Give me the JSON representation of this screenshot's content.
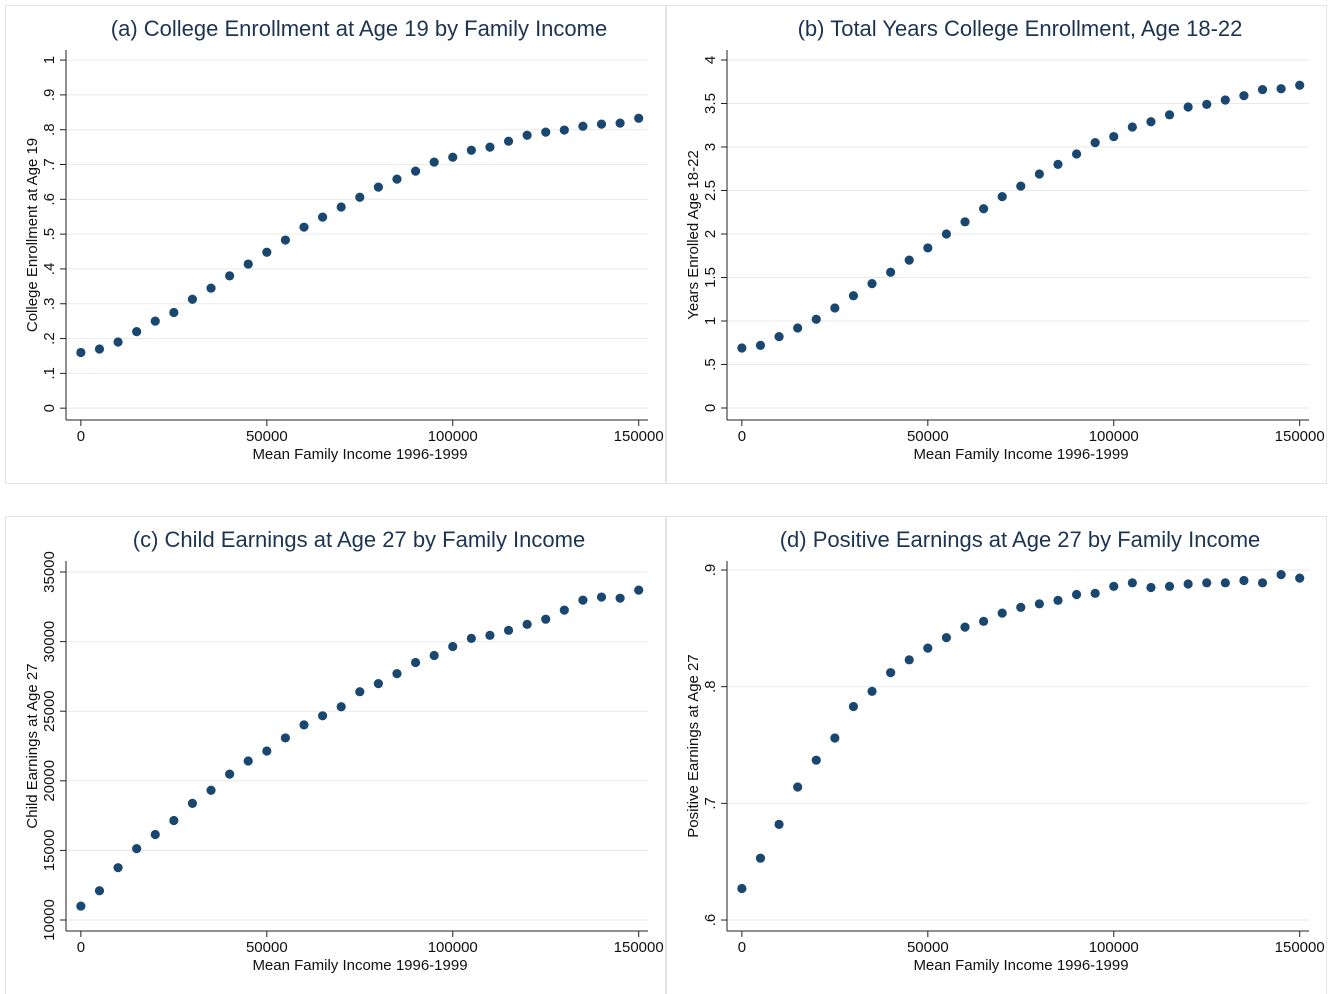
{
  "chart_data": [
    {
      "type": "scatter",
      "title": "(a) College Enrollment at Age 19 by Family Income",
      "xlabel": "Mean Family Income 1996-1999",
      "ylabel": "College Enrollment at Age 19",
      "color": "#1a476f",
      "grid": true,
      "x": [
        0,
        5000,
        10000,
        15000,
        20000,
        25000,
        30000,
        35000,
        40000,
        45000,
        50000,
        55000,
        60000,
        65000,
        70000,
        75000,
        80000,
        85000,
        90000,
        95000,
        100000,
        105000,
        110000,
        115000,
        120000,
        125000,
        130000,
        135000,
        140000,
        145000,
        150000
      ],
      "values": [
        0.16,
        0.17,
        0.19,
        0.22,
        0.25,
        0.275,
        0.313,
        0.345,
        0.38,
        0.414,
        0.448,
        0.483,
        0.52,
        0.549,
        0.578,
        0.606,
        0.635,
        0.658,
        0.681,
        0.707,
        0.721,
        0.741,
        0.75,
        0.767,
        0.784,
        0.793,
        0.799,
        0.81,
        0.816,
        0.819,
        0.833
      ],
      "xlim": [
        -4000,
        152500
      ],
      "ylim": [
        -0.034,
        1.029
      ],
      "xticks": [
        0,
        50000,
        100000,
        150000
      ],
      "yticks": [
        0,
        {
          "value": 0.1,
          "label": ".1"
        },
        {
          "value": 0.2,
          "label": ".2"
        },
        {
          "value": 0.3,
          "label": ".3"
        },
        {
          "value": 0.4,
          "label": ".4"
        },
        {
          "value": 0.5,
          "label": ".5"
        },
        {
          "value": 0.6,
          "label": ".6"
        },
        {
          "value": 0.7,
          "label": ".7"
        },
        {
          "value": 0.8,
          "label": ".8"
        },
        {
          "value": 0.9,
          "label": ".9"
        },
        1
      ]
    },
    {
      "type": "scatter",
      "title": "(b) Total Years College Enrollment, Age 18-22",
      "xlabel": "Mean Family Income 1996-1999",
      "ylabel": "Years Enrolled Age 18-22",
      "color": "#1a476f",
      "grid": true,
      "x": [
        0,
        5000,
        10000,
        15000,
        20000,
        25000,
        30000,
        35000,
        40000,
        45000,
        50000,
        55000,
        60000,
        65000,
        70000,
        75000,
        80000,
        85000,
        90000,
        95000,
        100000,
        105000,
        110000,
        115000,
        120000,
        125000,
        130000,
        135000,
        140000,
        145000,
        150000
      ],
      "values": [
        0.69,
        0.72,
        0.82,
        0.92,
        1.02,
        1.15,
        1.29,
        1.43,
        1.56,
        1.7,
        1.84,
        2.0,
        2.14,
        2.29,
        2.43,
        2.55,
        2.69,
        2.8,
        2.92,
        3.05,
        3.12,
        3.23,
        3.29,
        3.37,
        3.46,
        3.49,
        3.54,
        3.59,
        3.66,
        3.67,
        3.71
      ],
      "xlim": [
        -4000,
        152500
      ],
      "ylim": [
        -0.138,
        4.115
      ],
      "xticks": [
        0,
        50000,
        100000,
        150000
      ],
      "yticks": [
        0,
        {
          "value": 0.5,
          "label": ".5"
        },
        1,
        1.5,
        2,
        2.5,
        3,
        3.5,
        4
      ]
    },
    {
      "type": "scatter",
      "title": "(c) Child Earnings at Age 27 by Family Income",
      "xlabel": "Mean Family Income 1996-1999",
      "ylabel": "Child Earnings at Age 27",
      "color": "#1a476f",
      "grid": true,
      "x": [
        0,
        5000,
        10000,
        15000,
        20000,
        25000,
        30000,
        35000,
        40000,
        45000,
        50000,
        55000,
        60000,
        65000,
        70000,
        75000,
        80000,
        85000,
        90000,
        95000,
        100000,
        105000,
        110000,
        115000,
        120000,
        125000,
        130000,
        135000,
        140000,
        145000,
        150000
      ],
      "values": [
        11000,
        12100,
        13760,
        15130,
        16140,
        17150,
        18380,
        19320,
        20480,
        21420,
        22140,
        23080,
        24020,
        24670,
        25320,
        26400,
        26980,
        27700,
        28500,
        29000,
        29650,
        30230,
        30450,
        30810,
        31240,
        31610,
        32260,
        32980,
        33200,
        33120,
        33700
      ],
      "xlim": [
        -4000,
        152500
      ],
      "ylim": [
        9210,
        35790
      ],
      "xticks": [
        0,
        50000,
        100000,
        150000
      ],
      "yticks": [
        10000,
        15000,
        20000,
        25000,
        30000,
        35000
      ]
    },
    {
      "type": "scatter",
      "title": "(d) Positive Earnings at Age 27 by Family Income",
      "xlabel": "Mean Family Income 1996-1999",
      "ylabel": "Positive Earnings at Age 27",
      "color": "#1a476f",
      "grid": true,
      "x": [
        0,
        5000,
        10000,
        15000,
        20000,
        25000,
        30000,
        35000,
        40000,
        45000,
        50000,
        55000,
        60000,
        65000,
        70000,
        75000,
        80000,
        85000,
        90000,
        95000,
        100000,
        105000,
        110000,
        115000,
        120000,
        125000,
        130000,
        135000,
        140000,
        145000,
        150000
      ],
      "values": [
        0.627,
        0.653,
        0.682,
        0.714,
        0.737,
        0.756,
        0.783,
        0.796,
        0.812,
        0.823,
        0.833,
        0.842,
        0.851,
        0.856,
        0.863,
        0.868,
        0.871,
        0.874,
        0.879,
        0.88,
        0.886,
        0.889,
        0.885,
        0.886,
        0.888,
        0.889,
        0.889,
        0.891,
        0.889,
        0.896,
        0.893
      ],
      "xlim": [
        -4000,
        152500
      ],
      "ylim": [
        0.5906,
        0.9077
      ],
      "xticks": [
        0,
        50000,
        100000,
        150000
      ],
      "yticks": [
        {
          "value": 0.6,
          "label": ".6"
        },
        {
          "value": 0.7,
          "label": ".7"
        },
        {
          "value": 0.8,
          "label": ".8"
        },
        {
          "value": 0.9,
          "label": ".9"
        }
      ]
    }
  ]
}
